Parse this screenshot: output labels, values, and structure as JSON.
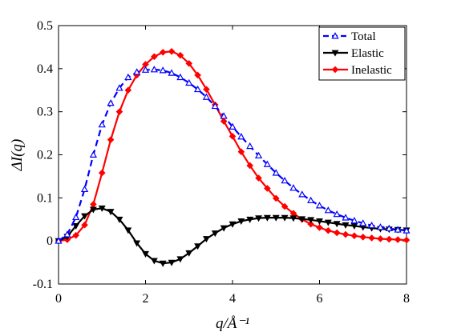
{
  "chart_data": {
    "type": "line",
    "xlabel": "q/Å⁻¹",
    "ylabel": "ΔI(q)",
    "xlim": [
      0,
      8
    ],
    "ylim": [
      -0.1,
      0.5
    ],
    "x_ticks": [
      "0",
      "2",
      "4",
      "6",
      "8"
    ],
    "y_ticks": [
      "-0.1",
      "0",
      "0.1",
      "0.2",
      "0.3",
      "0.4",
      "0.5"
    ],
    "grid": false,
    "legend_position": "top-right",
    "x": [
      0,
      0.2,
      0.4,
      0.6,
      0.8,
      1.0,
      1.2,
      1.4,
      1.6,
      1.8,
      2.0,
      2.2,
      2.4,
      2.6,
      2.8,
      3.0,
      3.2,
      3.4,
      3.6,
      3.8,
      4.0,
      4.2,
      4.4,
      4.6,
      4.8,
      5.0,
      5.2,
      5.4,
      5.6,
      5.8,
      6.0,
      6.2,
      6.4,
      6.6,
      6.8,
      7.0,
      7.2,
      7.4,
      7.6,
      7.8,
      8.0
    ],
    "series": [
      {
        "name": "Total",
        "color": "#0000ff",
        "line_style": "dashed",
        "marker": "triangle",
        "values": [
          0,
          0.015,
          0.055,
          0.12,
          0.2,
          0.27,
          0.32,
          0.355,
          0.38,
          0.392,
          0.397,
          0.398,
          0.396,
          0.39,
          0.38,
          0.367,
          0.352,
          0.334,
          0.313,
          0.29,
          0.265,
          0.242,
          0.22,
          0.198,
          0.178,
          0.158,
          0.14,
          0.123,
          0.108,
          0.094,
          0.082,
          0.071,
          0.062,
          0.054,
          0.047,
          0.041,
          0.036,
          0.032,
          0.029,
          0.026,
          0.024
        ]
      },
      {
        "name": "Elastic",
        "color": "#000000",
        "line_style": "solid",
        "marker": "triangle-down",
        "values": [
          0,
          0.01,
          0.035,
          0.058,
          0.073,
          0.076,
          0.068,
          0.05,
          0.025,
          -0.005,
          -0.03,
          -0.046,
          -0.052,
          -0.05,
          -0.042,
          -0.028,
          -0.012,
          0.005,
          0.018,
          0.03,
          0.039,
          0.046,
          0.05,
          0.053,
          0.054,
          0.054,
          0.054,
          0.053,
          0.051,
          0.049,
          0.046,
          0.043,
          0.04,
          0.037,
          0.035,
          0.032,
          0.03,
          0.028,
          0.027,
          0.026,
          0.025
        ]
      },
      {
        "name": "Inelastic",
        "color": "#ff0000",
        "line_style": "solid",
        "marker": "diamond",
        "values": [
          0,
          0.003,
          0.013,
          0.037,
          0.085,
          0.158,
          0.235,
          0.3,
          0.35,
          0.385,
          0.41,
          0.428,
          0.438,
          0.44,
          0.431,
          0.412,
          0.385,
          0.352,
          0.316,
          0.278,
          0.243,
          0.207,
          0.175,
          0.146,
          0.122,
          0.099,
          0.08,
          0.064,
          0.05,
          0.039,
          0.031,
          0.024,
          0.019,
          0.015,
          0.012,
          0.009,
          0.007,
          0.005,
          0.004,
          0.003,
          0.002
        ]
      }
    ]
  }
}
